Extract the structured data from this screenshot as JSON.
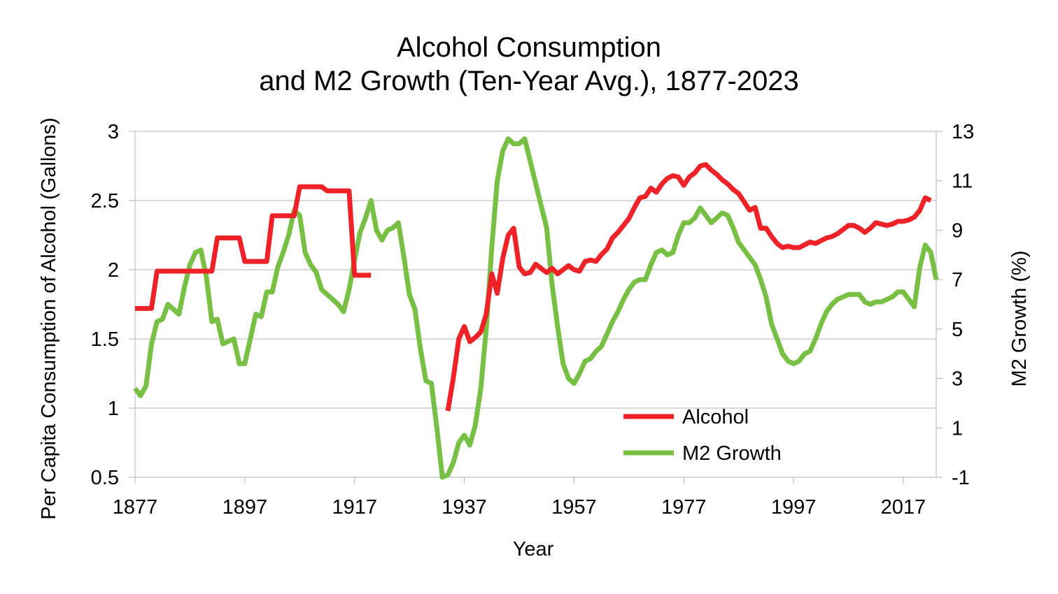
{
  "colors": {
    "alcohol": "#ee2227",
    "m2": "#77c043",
    "grid": "#b3b3b3",
    "axis": "#b3b3b3"
  },
  "chart_data": {
    "type": "line",
    "title": [
      "Alcohol Consumption",
      "and M2 Growth (Ten-Year Avg.), 1877-2023"
    ],
    "xlabel": "Year",
    "ylabel_left": "Per Capita Consumption of Alcohol (Gallons)",
    "ylabel_right": "M2 Growth (%)",
    "xlim": [
      1877,
      2023
    ],
    "xticks": [
      "1877",
      "1897",
      "1917",
      "1937",
      "1957",
      "1977",
      "1997",
      "2017"
    ],
    "ylim_left": [
      0.5,
      3
    ],
    "yticks_left": [
      "0.5",
      "1",
      "1.5",
      "2",
      "2.5",
      "3"
    ],
    "ylim_right": [
      -1,
      13
    ],
    "yticks_right": [
      "-1",
      "1",
      "3",
      "5",
      "7",
      "9",
      "11",
      "13"
    ],
    "grid": true,
    "legend_position": "bottom-right",
    "series": [
      {
        "name": "Alcohol",
        "axis": "left",
        "color": "#ee2227",
        "segments": [
          [
            [
              1877,
              1.72
            ],
            [
              1880,
              1.72
            ],
            [
              1881,
              1.99
            ],
            [
              1884,
              1.99
            ],
            [
              1887,
              1.99
            ],
            [
              1890,
              1.99
            ],
            [
              1891,
              1.99
            ],
            [
              1892,
              2.23
            ],
            [
              1895,
              2.23
            ],
            [
              1896,
              2.23
            ],
            [
              1897,
              2.06
            ],
            [
              1900,
              2.06
            ],
            [
              1901,
              2.06
            ],
            [
              1902,
              2.39
            ],
            [
              1905,
              2.39
            ],
            [
              1906,
              2.39
            ],
            [
              1907,
              2.6
            ],
            [
              1910,
              2.6
            ],
            [
              1911,
              2.6
            ],
            [
              1912,
              2.57
            ],
            [
              1915,
              2.57
            ],
            [
              1916,
              2.57
            ],
            [
              1917,
              1.96
            ],
            [
              1919,
              1.96
            ],
            [
              1920,
              1.96
            ]
          ],
          [
            [
              1934,
              0.98
            ],
            [
              1935,
              1.22
            ],
            [
              1936,
              1.5
            ],
            [
              1937,
              1.59
            ],
            [
              1938,
              1.48
            ],
            [
              1939,
              1.51
            ],
            [
              1940,
              1.55
            ],
            [
              1941,
              1.68
            ],
            [
              1942,
              1.97
            ],
            [
              1943,
              1.83
            ],
            [
              1944,
              2.08
            ],
            [
              1945,
              2.25
            ],
            [
              1946,
              2.3
            ],
            [
              1947,
              2.02
            ],
            [
              1948,
              1.97
            ],
            [
              1949,
              1.98
            ],
            [
              1950,
              2.04
            ],
            [
              1951,
              2.01
            ],
            [
              1952,
              1.98
            ],
            [
              1953,
              2.01
            ],
            [
              1954,
              1.97
            ],
            [
              1955,
              2.0
            ],
            [
              1956,
              2.03
            ],
            [
              1957,
              2.0
            ],
            [
              1958,
              1.99
            ],
            [
              1959,
              2.06
            ],
            [
              1960,
              2.07
            ],
            [
              1961,
              2.06
            ],
            [
              1962,
              2.11
            ],
            [
              1963,
              2.15
            ],
            [
              1964,
              2.23
            ],
            [
              1965,
              2.27
            ],
            [
              1966,
              2.32
            ],
            [
              1967,
              2.37
            ],
            [
              1968,
              2.45
            ],
            [
              1969,
              2.52
            ],
            [
              1970,
              2.53
            ],
            [
              1971,
              2.59
            ],
            [
              1972,
              2.56
            ],
            [
              1973,
              2.62
            ],
            [
              1974,
              2.66
            ],
            [
              1975,
              2.68
            ],
            [
              1976,
              2.67
            ],
            [
              1977,
              2.61
            ],
            [
              1978,
              2.67
            ],
            [
              1979,
              2.7
            ],
            [
              1980,
              2.75
            ],
            [
              1981,
              2.76
            ],
            [
              1982,
              2.72
            ],
            [
              1983,
              2.69
            ],
            [
              1984,
              2.65
            ],
            [
              1985,
              2.62
            ],
            [
              1986,
              2.58
            ],
            [
              1987,
              2.55
            ],
            [
              1988,
              2.49
            ],
            [
              1989,
              2.43
            ],
            [
              1990,
              2.45
            ],
            [
              1991,
              2.3
            ],
            [
              1992,
              2.3
            ],
            [
              1993,
              2.24
            ],
            [
              1994,
              2.19
            ],
            [
              1995,
              2.16
            ],
            [
              1996,
              2.17
            ],
            [
              1997,
              2.16
            ],
            [
              1998,
              2.16
            ],
            [
              1999,
              2.18
            ],
            [
              2000,
              2.2
            ],
            [
              2001,
              2.19
            ],
            [
              2002,
              2.21
            ],
            [
              2003,
              2.23
            ],
            [
              2004,
              2.24
            ],
            [
              2005,
              2.26
            ],
            [
              2006,
              2.29
            ],
            [
              2007,
              2.32
            ],
            [
              2008,
              2.32
            ],
            [
              2009,
              2.3
            ],
            [
              2010,
              2.27
            ],
            [
              2011,
              2.3
            ],
            [
              2012,
              2.34
            ],
            [
              2013,
              2.33
            ],
            [
              2014,
              2.32
            ],
            [
              2015,
              2.33
            ],
            [
              2016,
              2.35
            ],
            [
              2017,
              2.35
            ],
            [
              2018,
              2.36
            ],
            [
              2019,
              2.38
            ],
            [
              2020,
              2.43
            ],
            [
              2021,
              2.52
            ],
            [
              2022,
              2.5
            ]
          ]
        ]
      },
      {
        "name": "M2 Growth",
        "axis": "right",
        "color": "#77c043",
        "segments": [
          [
            [
              1877,
              2.6
            ],
            [
              1878,
              2.3
            ],
            [
              1879,
              2.7
            ],
            [
              1880,
              4.4
            ],
            [
              1881,
              5.3
            ],
            [
              1882,
              5.4
            ],
            [
              1883,
              6.0
            ],
            [
              1884,
              5.8
            ],
            [
              1885,
              5.6
            ],
            [
              1886,
              6.7
            ],
            [
              1887,
              7.6
            ],
            [
              1888,
              8.1
            ],
            [
              1889,
              8.2
            ],
            [
              1890,
              7.1
            ],
            [
              1891,
              5.3
            ],
            [
              1892,
              5.4
            ],
            [
              1893,
              4.4
            ],
            [
              1894,
              4.5
            ],
            [
              1895,
              4.6
            ],
            [
              1896,
              3.6
            ],
            [
              1897,
              3.6
            ],
            [
              1898,
              4.6
            ],
            [
              1899,
              5.6
            ],
            [
              1900,
              5.5
            ],
            [
              1901,
              6.5
            ],
            [
              1902,
              6.5
            ],
            [
              1903,
              7.5
            ],
            [
              1904,
              8.1
            ],
            [
              1905,
              8.8
            ],
            [
              1906,
              9.8
            ],
            [
              1907,
              9.6
            ],
            [
              1908,
              8.1
            ],
            [
              1909,
              7.6
            ],
            [
              1910,
              7.3
            ],
            [
              1911,
              6.6
            ],
            [
              1912,
              6.4
            ],
            [
              1913,
              6.2
            ],
            [
              1914,
              6.0
            ],
            [
              1915,
              5.7
            ],
            [
              1916,
              6.6
            ],
            [
              1917,
              7.8
            ],
            [
              1918,
              8.9
            ],
            [
              1919,
              9.5
            ],
            [
              1920,
              10.2
            ],
            [
              1921,
              9.0
            ],
            [
              1922,
              8.6
            ],
            [
              1923,
              9.0
            ],
            [
              1924,
              9.1
            ],
            [
              1925,
              9.3
            ],
            [
              1926,
              7.9
            ],
            [
              1927,
              6.4
            ],
            [
              1928,
              5.8
            ],
            [
              1929,
              4.2
            ],
            [
              1930,
              2.9
            ],
            [
              1931,
              2.8
            ],
            [
              1932,
              1.0
            ],
            [
              1933,
              -1.0
            ],
            [
              1934,
              -0.9
            ],
            [
              1935,
              -0.4
            ],
            [
              1936,
              0.4
            ],
            [
              1937,
              0.7
            ],
            [
              1938,
              0.3
            ],
            [
              1939,
              1.1
            ],
            [
              1940,
              2.6
            ],
            [
              1941,
              5.0
            ],
            [
              1942,
              8.3
            ],
            [
              1943,
              11.0
            ],
            [
              1944,
              12.2
            ],
            [
              1945,
              12.7
            ],
            [
              1946,
              12.5
            ],
            [
              1947,
              12.5
            ],
            [
              1948,
              12.7
            ],
            [
              1949,
              11.8
            ],
            [
              1950,
              10.9
            ],
            [
              1951,
              10.0
            ],
            [
              1952,
              9.1
            ],
            [
              1953,
              6.8
            ],
            [
              1954,
              5.1
            ],
            [
              1955,
              3.6
            ],
            [
              1956,
              3.0
            ],
            [
              1957,
              2.8
            ],
            [
              1958,
              3.2
            ],
            [
              1959,
              3.7
            ],
            [
              1960,
              3.8
            ],
            [
              1961,
              4.1
            ],
            [
              1962,
              4.3
            ],
            [
              1963,
              4.8
            ],
            [
              1964,
              5.3
            ],
            [
              1965,
              5.7
            ],
            [
              1966,
              6.2
            ],
            [
              1967,
              6.6
            ],
            [
              1968,
              6.9
            ],
            [
              1969,
              7.0
            ],
            [
              1970,
              7.0
            ],
            [
              1971,
              7.6
            ],
            [
              1972,
              8.1
            ],
            [
              1973,
              8.2
            ],
            [
              1974,
              8.0
            ],
            [
              1975,
              8.1
            ],
            [
              1976,
              8.8
            ],
            [
              1977,
              9.3
            ],
            [
              1978,
              9.3
            ],
            [
              1979,
              9.5
            ],
            [
              1980,
              9.9
            ],
            [
              1981,
              9.6
            ],
            [
              1982,
              9.3
            ],
            [
              1983,
              9.5
            ],
            [
              1984,
              9.7
            ],
            [
              1985,
              9.6
            ],
            [
              1986,
              9.1
            ],
            [
              1987,
              8.5
            ],
            [
              1988,
              8.2
            ],
            [
              1989,
              7.9
            ],
            [
              1990,
              7.6
            ],
            [
              1991,
              7.0
            ],
            [
              1992,
              6.3
            ],
            [
              1993,
              5.2
            ],
            [
              1994,
              4.6
            ],
            [
              1995,
              4.0
            ],
            [
              1996,
              3.7
            ],
            [
              1997,
              3.6
            ],
            [
              1998,
              3.7
            ],
            [
              1999,
              4.0
            ],
            [
              2000,
              4.1
            ],
            [
              2001,
              4.6
            ],
            [
              2002,
              5.2
            ],
            [
              2003,
              5.7
            ],
            [
              2004,
              6.0
            ],
            [
              2005,
              6.2
            ],
            [
              2006,
              6.3
            ],
            [
              2007,
              6.4
            ],
            [
              2008,
              6.4
            ],
            [
              2009,
              6.4
            ],
            [
              2010,
              6.1
            ],
            [
              2011,
              6.0
            ],
            [
              2012,
              6.1
            ],
            [
              2013,
              6.1
            ],
            [
              2014,
              6.2
            ],
            [
              2015,
              6.3
            ],
            [
              2016,
              6.5
            ],
            [
              2017,
              6.5
            ],
            [
              2018,
              6.2
            ],
            [
              2019,
              5.9
            ],
            [
              2020,
              7.5
            ],
            [
              2021,
              8.4
            ],
            [
              2022,
              8.1
            ],
            [
              2023,
              7.0
            ]
          ]
        ]
      }
    ]
  }
}
